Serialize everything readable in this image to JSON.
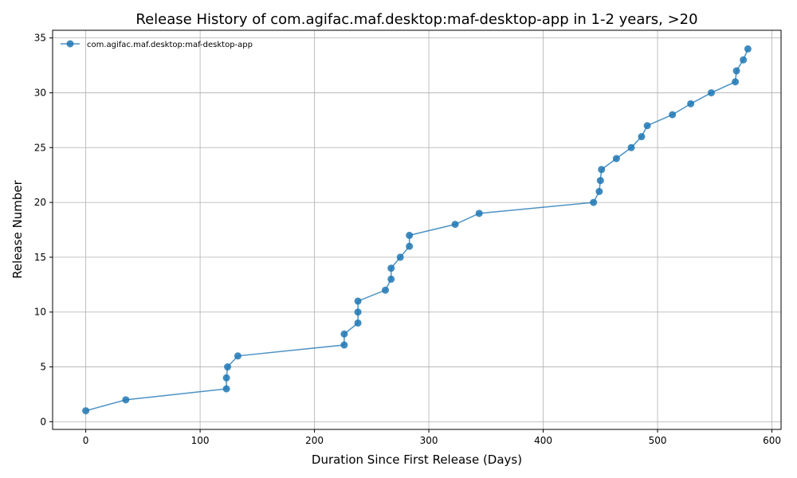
{
  "chart_data": {
    "type": "line",
    "title": "Release History of com.agifac.maf.desktop:maf-desktop-app in 1-2 years, >20",
    "xlabel": "Duration Since First Release (Days)",
    "ylabel": "Release Number",
    "xlim": [
      -29,
      608
    ],
    "ylim": [
      -0.7,
      35.7
    ],
    "xticks": [
      0,
      100,
      200,
      300,
      400,
      500,
      600
    ],
    "yticks": [
      0,
      5,
      10,
      15,
      20,
      25,
      30,
      35
    ],
    "grid": true,
    "legend_position": "top-left",
    "color": "#1f77b4",
    "series": [
      {
        "name": "com.agifac.maf.desktop:maf-desktop-app",
        "marker": "circle",
        "points": [
          [
            0,
            1
          ],
          [
            35,
            2
          ],
          [
            123,
            3
          ],
          [
            123,
            4
          ],
          [
            124,
            5
          ],
          [
            133,
            6
          ],
          [
            226,
            7
          ],
          [
            226,
            8
          ],
          [
            238,
            9
          ],
          [
            238,
            10
          ],
          [
            238,
            11
          ],
          [
            262,
            12
          ],
          [
            267,
            13
          ],
          [
            267,
            14
          ],
          [
            275,
            15
          ],
          [
            283,
            16
          ],
          [
            283,
            17
          ],
          [
            323,
            18
          ],
          [
            344,
            19
          ],
          [
            444,
            20
          ],
          [
            449,
            21
          ],
          [
            450,
            22
          ],
          [
            451,
            23
          ],
          [
            464,
            24
          ],
          [
            477,
            25
          ],
          [
            486,
            26
          ],
          [
            491,
            27
          ],
          [
            513,
            28
          ],
          [
            529,
            29
          ],
          [
            547,
            30
          ],
          [
            568,
            31
          ],
          [
            569,
            32
          ],
          [
            575,
            33
          ],
          [
            579,
            34
          ]
        ]
      }
    ]
  }
}
